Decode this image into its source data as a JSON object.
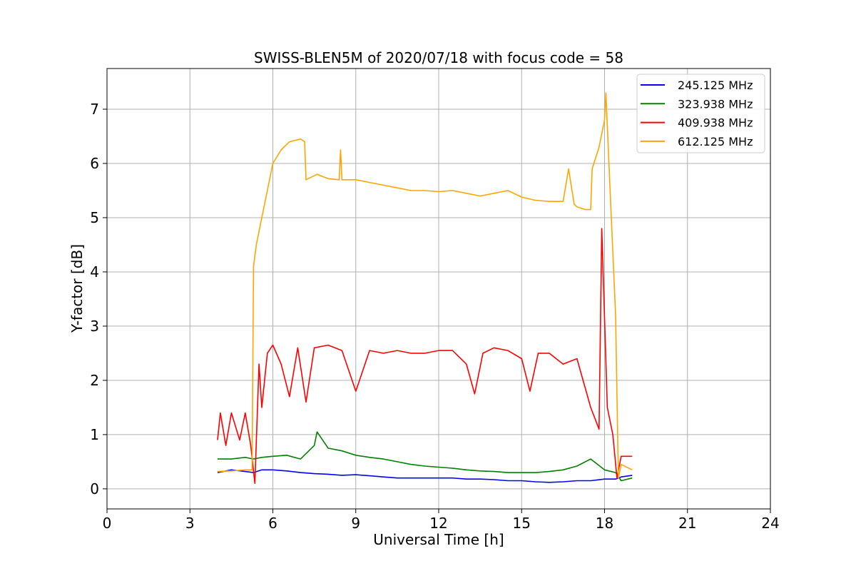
{
  "chart_data": {
    "type": "line",
    "title": "SWISS-BLEN5M of 2020/07/18 with focus code = 58",
    "xlabel": "Universal Time [h]",
    "ylabel": "Y-factor [dB]",
    "xlim": [
      0,
      24
    ],
    "ylim": [
      -0.37,
      7.75
    ],
    "xticks": [
      "0",
      "3",
      "6",
      "9",
      "12",
      "15",
      "18",
      "21",
      "24"
    ],
    "yticks": [
      "0",
      "1",
      "2",
      "3",
      "4",
      "5",
      "6",
      "7"
    ],
    "grid": true,
    "legend_position": "top-right",
    "series": [
      {
        "name": "245.125 MHz",
        "color": "#0000ff",
        "x": [
          4.0,
          4.5,
          5.0,
          5.3,
          5.6,
          6.0,
          6.5,
          7.0,
          7.5,
          8.0,
          8.5,
          9.0,
          9.5,
          10.0,
          10.5,
          11.0,
          11.5,
          12.0,
          12.5,
          13.0,
          13.5,
          14.0,
          14.5,
          15.0,
          15.5,
          16.0,
          16.5,
          17.0,
          17.5,
          18.0,
          18.4,
          18.6,
          19.0
        ],
        "y": [
          0.3,
          0.35,
          0.32,
          0.3,
          0.35,
          0.35,
          0.33,
          0.3,
          0.28,
          0.27,
          0.25,
          0.26,
          0.24,
          0.22,
          0.2,
          0.2,
          0.2,
          0.2,
          0.2,
          0.18,
          0.18,
          0.17,
          0.15,
          0.15,
          0.13,
          0.12,
          0.13,
          0.15,
          0.15,
          0.18,
          0.18,
          0.22,
          0.25
        ]
      },
      {
        "name": "323.938 MHz",
        "color": "#008000",
        "x": [
          4.0,
          4.5,
          5.0,
          5.3,
          5.6,
          6.0,
          6.5,
          7.0,
          7.5,
          7.6,
          8.0,
          8.5,
          9.0,
          9.5,
          10.0,
          10.5,
          11.0,
          11.5,
          12.0,
          12.5,
          13.0,
          13.5,
          14.0,
          14.5,
          15.0,
          15.5,
          16.0,
          16.5,
          17.0,
          17.5,
          18.0,
          18.4,
          18.6,
          19.0
        ],
        "y": [
          0.55,
          0.55,
          0.58,
          0.55,
          0.58,
          0.6,
          0.62,
          0.55,
          0.8,
          1.05,
          0.75,
          0.7,
          0.62,
          0.58,
          0.55,
          0.5,
          0.45,
          0.42,
          0.4,
          0.38,
          0.35,
          0.33,
          0.32,
          0.3,
          0.3,
          0.3,
          0.32,
          0.35,
          0.42,
          0.55,
          0.35,
          0.3,
          0.15,
          0.2
        ]
      },
      {
        "name": "409.938 MHz",
        "color": "#ff0000",
        "x": [
          4.0,
          4.1,
          4.3,
          4.5,
          4.8,
          5.0,
          5.2,
          5.35,
          5.5,
          5.6,
          5.8,
          6.0,
          6.3,
          6.6,
          6.9,
          7.2,
          7.5,
          8.0,
          8.5,
          9.0,
          9.5,
          10.0,
          10.5,
          11.0,
          11.5,
          12.0,
          12.5,
          13.0,
          13.3,
          13.6,
          14.0,
          14.5,
          15.0,
          15.3,
          15.6,
          16.0,
          16.5,
          17.0,
          17.5,
          17.8,
          17.9,
          18.1,
          18.3,
          18.45,
          18.6,
          19.0
        ],
        "y": [
          0.9,
          1.4,
          0.8,
          1.4,
          0.9,
          1.4,
          0.8,
          0.1,
          2.3,
          1.5,
          2.5,
          2.65,
          2.3,
          1.7,
          2.6,
          1.6,
          2.6,
          2.65,
          2.55,
          1.8,
          2.55,
          2.5,
          2.55,
          2.5,
          2.5,
          2.55,
          2.55,
          2.3,
          1.75,
          2.5,
          2.6,
          2.55,
          2.4,
          1.8,
          2.5,
          2.5,
          2.3,
          2.4,
          1.5,
          1.1,
          4.8,
          1.5,
          1.0,
          0.2,
          0.6,
          0.6
        ]
      },
      {
        "name": "612.125 MHz",
        "color": "#ffa500",
        "x": [
          4.0,
          4.5,
          5.0,
          5.25,
          5.3,
          5.4,
          5.6,
          5.8,
          6.0,
          6.3,
          6.6,
          7.0,
          7.15,
          7.2,
          7.6,
          8.0,
          8.4,
          8.45,
          8.5,
          9.0,
          9.5,
          10.0,
          10.5,
          11.0,
          11.5,
          12.0,
          12.5,
          13.0,
          13.5,
          14.0,
          14.5,
          15.0,
          15.5,
          16.0,
          16.5,
          16.7,
          16.9,
          17.0,
          17.3,
          17.5,
          17.55,
          17.8,
          18.0,
          18.05,
          18.2,
          18.4,
          18.5,
          18.6,
          19.0
        ],
        "y": [
          0.32,
          0.33,
          0.35,
          0.35,
          4.1,
          4.5,
          5.0,
          5.5,
          6.0,
          6.25,
          6.4,
          6.45,
          6.4,
          5.7,
          5.8,
          5.72,
          5.7,
          6.25,
          5.7,
          5.7,
          5.65,
          5.6,
          5.55,
          5.5,
          5.5,
          5.48,
          5.5,
          5.45,
          5.4,
          5.45,
          5.5,
          5.38,
          5.32,
          5.3,
          5.3,
          5.9,
          5.25,
          5.2,
          5.15,
          5.15,
          5.9,
          6.3,
          6.8,
          7.3,
          5.5,
          3.2,
          0.2,
          0.45,
          0.35
        ]
      }
    ]
  }
}
